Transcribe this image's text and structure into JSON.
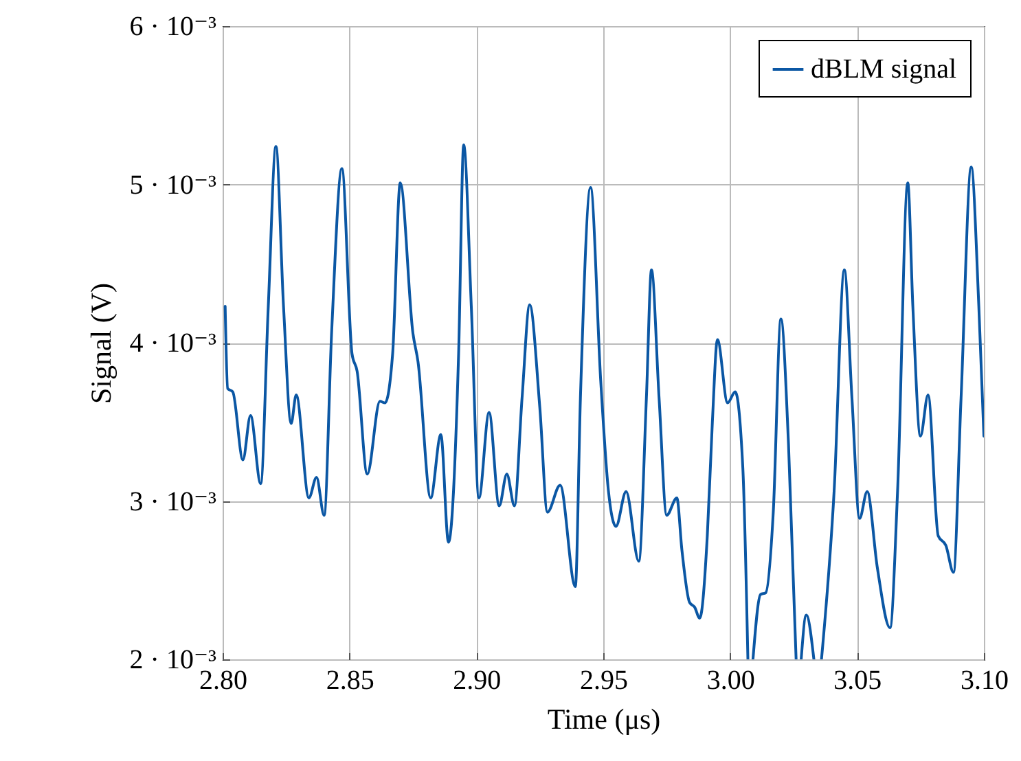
{
  "chart_data": {
    "type": "line",
    "xlabel": "Time (μs)",
    "ylabel": "Signal (V)",
    "grid": true,
    "legend": "top right",
    "xlim": [
      2.8,
      3.1
    ],
    "ylim": [
      0.002,
      0.006
    ],
    "xticks": [
      {
        "value": 2.8,
        "label": "2.80"
      },
      {
        "value": 2.85,
        "label": "2.85"
      },
      {
        "value": 2.9,
        "label": "2.90"
      },
      {
        "value": 2.95,
        "label": "2.95"
      },
      {
        "value": 3.0,
        "label": "3.00"
      },
      {
        "value": 3.05,
        "label": "3.05"
      },
      {
        "value": 3.1,
        "label": "3.10"
      }
    ],
    "yticks": [
      {
        "value": 0.002,
        "label": "2 · 10⁻³"
      },
      {
        "value": 0.003,
        "label": "3 · 10⁻³"
      },
      {
        "value": 0.004,
        "label": "4 · 10⁻³"
      },
      {
        "value": 0.005,
        "label": "5 · 10⁻³"
      },
      {
        "value": 0.006,
        "label": "6 · 10⁻³"
      }
    ],
    "x": [
      2.801,
      2.802,
      2.804,
      2.808,
      2.811,
      2.815,
      2.818,
      2.821,
      2.824,
      2.827,
      2.829,
      2.834,
      2.837,
      2.84,
      2.843,
      2.847,
      2.851,
      2.853,
      2.857,
      2.862,
      2.864,
      2.867,
      2.87,
      2.875,
      2.877,
      2.882,
      2.886,
      2.889,
      2.893,
      2.895,
      2.898,
      2.901,
      2.905,
      2.909,
      2.912,
      2.915,
      2.918,
      2.921,
      2.925,
      2.928,
      2.933,
      2.939,
      2.941,
      2.945,
      2.949,
      2.952,
      2.955,
      2.959,
      2.964,
      2.967,
      2.969,
      2.972,
      2.975,
      2.979,
      2.981,
      2.984,
      2.986,
      2.988,
      2.991,
      2.993,
      2.995,
      2.999,
      3.002,
      3.005,
      3.007,
      3.008,
      3.009,
      3.012,
      3.014,
      3.017,
      3.02,
      3.023,
      3.026,
      3.027,
      3.028,
      3.03,
      3.033,
      3.0345,
      3.036,
      3.041,
      3.045,
      3.048,
      3.051,
      3.054,
      3.058,
      3.063,
      3.066,
      3.07,
      3.072,
      3.075,
      3.078,
      3.082,
      3.085,
      3.088,
      3.091,
      3.095,
      3.098,
      3.1
    ],
    "series": [
      {
        "name": "dBLM signal",
        "color": "#0b57a4",
        "values": [
          0.00423,
          0.00371,
          0.00369,
          0.00326,
          0.00354,
          0.00311,
          0.00423,
          0.00524,
          0.00423,
          0.00349,
          0.00367,
          0.00302,
          0.00315,
          0.00291,
          0.00408,
          0.0051,
          0.00393,
          0.00382,
          0.00317,
          0.00363,
          0.00362,
          0.00393,
          0.00501,
          0.00406,
          0.00388,
          0.00302,
          0.00342,
          0.00274,
          0.00393,
          0.00525,
          0.00423,
          0.00302,
          0.00356,
          0.00297,
          0.00317,
          0.00297,
          0.00365,
          0.00424,
          0.00359,
          0.00293,
          0.0031,
          0.00246,
          0.00365,
          0.00498,
          0.00376,
          0.00307,
          0.00284,
          0.00306,
          0.00262,
          0.00365,
          0.00446,
          0.00365,
          0.00291,
          0.00302,
          0.00269,
          0.00236,
          0.00233,
          0.00226,
          0.00278,
          0.0035,
          0.00402,
          0.00362,
          0.00369,
          0.00321,
          0.002,
          null,
          0.002,
          0.00241,
          0.00242,
          0.00293,
          0.00415,
          0.00336,
          0.002,
          null,
          0.002,
          0.00228,
          0.002,
          null,
          0.002,
          0.00307,
          0.00446,
          0.00365,
          0.00289,
          0.00306,
          0.00258,
          0.0022,
          0.00307,
          0.00501,
          0.00423,
          0.00341,
          0.00367,
          0.00278,
          0.00272,
          0.00255,
          0.00365,
          0.00511,
          0.00423,
          0.00341
        ]
      }
    ]
  }
}
